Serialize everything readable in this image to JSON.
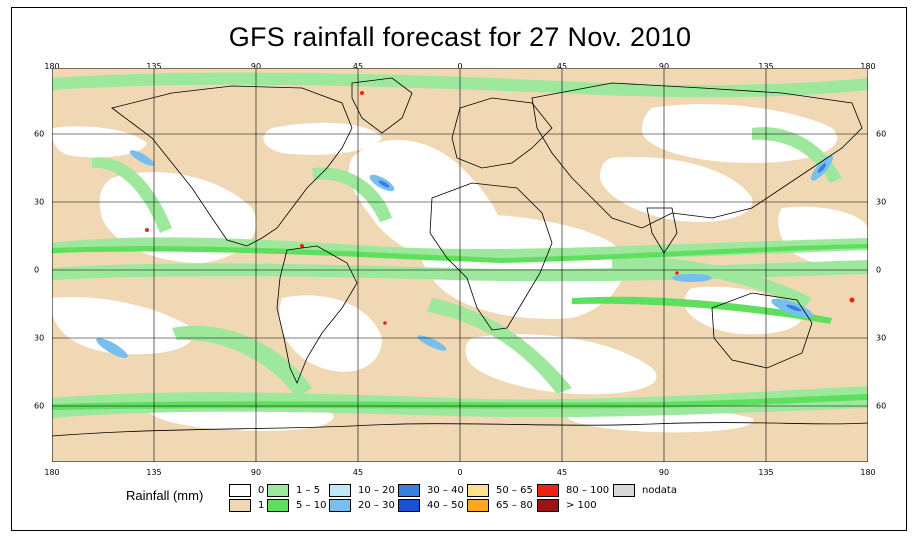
{
  "title": "GFS rainfall forecast for 27 Nov. 2010",
  "axes": {
    "lon_ticks": [
      "180",
      "135",
      "90",
      "45",
      "0",
      "45",
      "90",
      "135",
      "180"
    ],
    "lat_ticks": [
      "60",
      "30",
      "0",
      "30",
      "60"
    ]
  },
  "legend": {
    "title": "Rainfall (mm)",
    "items": [
      {
        "label": "0",
        "color": "#ffffff"
      },
      {
        "label": "1",
        "color": "#f0d8b4"
      },
      {
        "label": "1 – 5",
        "color": "#9de89d"
      },
      {
        "label": "5 – 10",
        "color": "#5ee05e"
      },
      {
        "label": "10 – 20",
        "color": "#bfe8f8"
      },
      {
        "label": "20 – 30",
        "color": "#78bff0"
      },
      {
        "label": "30 – 40",
        "color": "#3a7fe0"
      },
      {
        "label": "40 – 50",
        "color": "#1a4fd8"
      },
      {
        "label": "50 – 65",
        "color": "#ffe08a"
      },
      {
        "label": "65 – 80",
        "color": "#ffa51f"
      },
      {
        "label": "80 – 100",
        "color": "#ee2211"
      },
      {
        "label": "> 100",
        "color": "#9a1414"
      },
      {
        "label": "nodata",
        "color": "#d8d8d8"
      }
    ]
  }
}
